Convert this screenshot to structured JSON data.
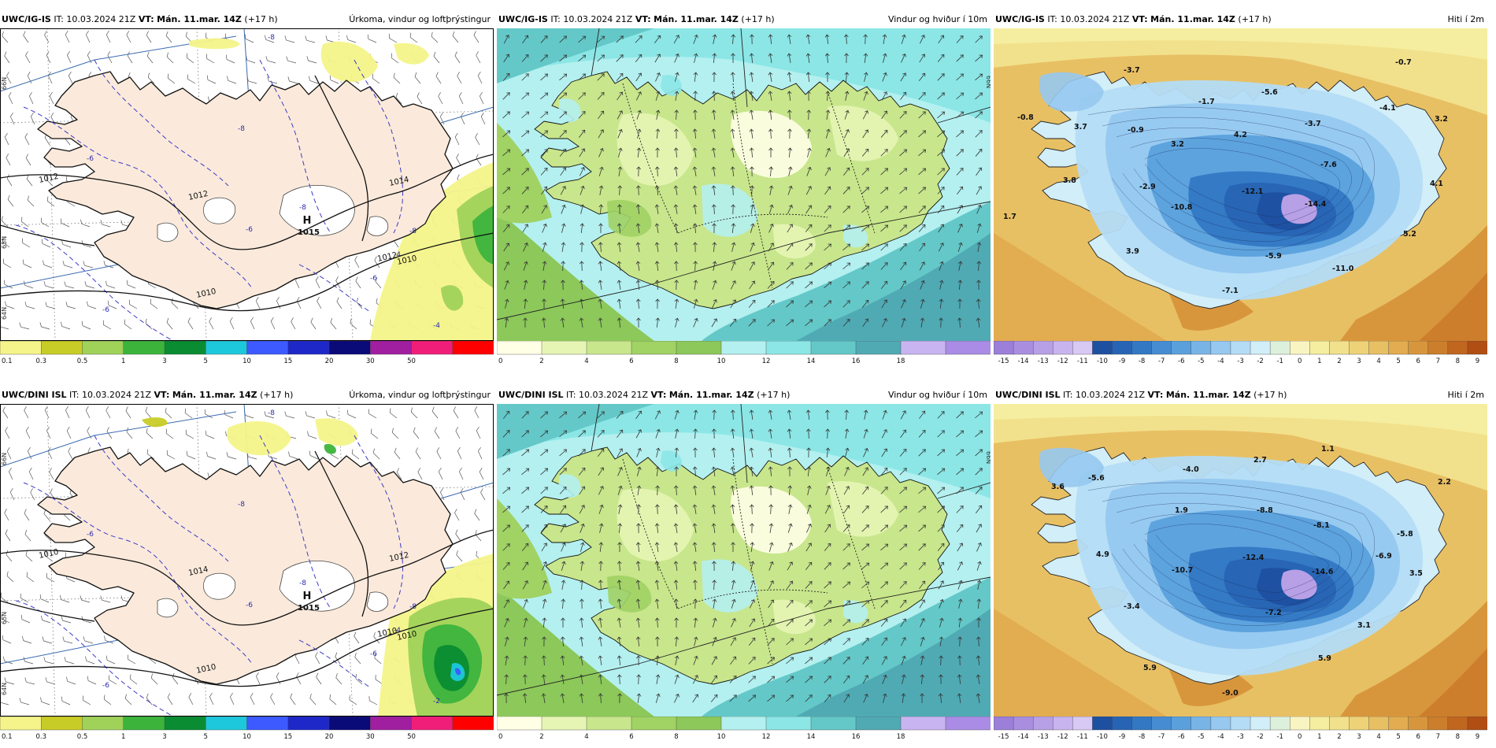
{
  "panels": [
    {
      "model": "UWC/IG-IS",
      "it_label": "IT:",
      "it": "10.03.2024 21Z",
      "vt_label": "VT:",
      "vt": "Mán. 11.mar. 14Z",
      "lead": "(+17 h)",
      "title": "Úrkoma, vindur og loftþrýstingur",
      "kind": "precip"
    },
    {
      "model": "UWC/IG-IS",
      "it_label": "IT:",
      "it": "10.03.2024 21Z",
      "vt_label": "VT:",
      "vt": "Mán. 11.mar. 14Z",
      "lead": "(+17 h)",
      "title": "Vindur og hviður í 10m",
      "kind": "wind"
    },
    {
      "model": "UWC/IG-IS",
      "it_label": "IT:",
      "it": "10.03.2024 21Z",
      "vt_label": "VT:",
      "vt": "Mán. 11.mar. 14Z",
      "lead": "(+17 h)",
      "title": "Hiti í 2m",
      "kind": "temp"
    },
    {
      "model": "UWC/DINI ISL",
      "it_label": "IT:",
      "it": "10.03.2024 21Z",
      "vt_label": "VT:",
      "vt": "Mán. 11.mar. 14Z",
      "lead": "(+17 h)",
      "title": "Úrkoma, vindur og loftþrýstingur",
      "kind": "precip"
    },
    {
      "model": "UWC/DINI ISL",
      "it_label": "IT:",
      "it": "10.03.2024 21Z",
      "vt_label": "VT:",
      "vt": "Mán. 11.mar. 14Z",
      "lead": "(+17 h)",
      "title": "Vindur og hviður í 10m",
      "kind": "wind"
    },
    {
      "model": "UWC/DINI ISL",
      "it_label": "IT:",
      "it": "10.03.2024 21Z",
      "vt_label": "VT:",
      "vt": "Mán. 11.mar. 14Z",
      "lead": "(+17 h)",
      "title": "Hiti í 2m",
      "kind": "temp"
    }
  ],
  "precip_scale": {
    "labels": [
      "0.1",
      "0.3",
      "0.5",
      "1",
      "3",
      "5",
      "10",
      "15",
      "20",
      "30",
      "50",
      ""
    ],
    "colors": [
      "#f4f48a",
      "#c8cc26",
      "#a0d25a",
      "#3cb43c",
      "#0a8c32",
      "#1ec8dc",
      "#3c5aff",
      "#1e28c8",
      "#0a0a78",
      "#a01ea0",
      "#f01e78",
      "#ff0000"
    ]
  },
  "wind_scale": {
    "labels": [
      "0",
      "2",
      "4",
      "6",
      "8",
      "10",
      "12",
      "14",
      "16",
      "18"
    ],
    "colors": [
      "#ffffe6",
      "#e6f5b4",
      "#c8e68c",
      "#a0d264",
      "#8cc85a",
      "#b4f0f0",
      "#8ce6e6",
      "#64c8c8",
      "#50aab4",
      "#c8b4f0",
      "#aa8ce6"
    ]
  },
  "temp_scale": {
    "labels": [
      "-15",
      "-14",
      "-13",
      "-12",
      "-11",
      "-10",
      "-9",
      "-8",
      "-7",
      "-6",
      "-5",
      "-4",
      "-3",
      "-2",
      "-1",
      "0",
      "1",
      "2",
      "3",
      "4",
      "5",
      "6",
      "7",
      "8",
      "9"
    ],
    "colors": [
      "#9b7fd9",
      "#a98ee0",
      "#b8a0e6",
      "#c8b4ee",
      "#d8c8f4",
      "#1e50a0",
      "#2864b4",
      "#3278c3",
      "#468cd2",
      "#5aa0dc",
      "#78b4e6",
      "#96c8f0",
      "#b4dcf5",
      "#d2eef8",
      "#dcf0dc",
      "#f8f5c3",
      "#f5eea0",
      "#f2e18c",
      "#eed278",
      "#e8c064",
      "#e2ac50",
      "#d8963c",
      "#cc7e2c",
      "#c0661e",
      "#b04e14"
    ]
  },
  "pressure_labels": {
    "r0": [
      "1012",
      "1012",
      "1014",
      "1010",
      "1010",
      "1012"
    ],
    "r1": [
      "1010",
      "1014",
      "1012",
      "1010",
      "1010",
      "1010"
    ],
    "high_letter": "H",
    "high_r0": "1015",
    "high_r1": "1015"
  },
  "precip_dashed_labels": {
    "r0": [
      "-8",
      "-6",
      "-8",
      "-8",
      "-6",
      "-4",
      "-6",
      "-8",
      "-6",
      "-4"
    ],
    "r1": [
      "-8",
      "-6",
      "-8",
      "-8",
      "-6",
      "-4",
      "-6",
      "-8",
      "-6",
      "-2"
    ]
  },
  "lat_labels": [
    "66N",
    "65N",
    "64N"
  ],
  "temp_labels": {
    "r0": [
      {
        "t": "-3.7"
      },
      {
        "t": "-1.7"
      },
      {
        "t": "-5.6"
      },
      {
        "t": "-0.7"
      },
      {
        "t": "-4.1"
      },
      {
        "t": "-0.8"
      },
      {
        "t": "3.7"
      },
      {
        "t": "-0.9"
      },
      {
        "t": "3.2"
      },
      {
        "t": "4.2"
      },
      {
        "t": "-3.7"
      },
      {
        "t": "3.2"
      },
      {
        "t": "-7.6"
      },
      {
        "t": "3.8"
      },
      {
        "t": "-2.9"
      },
      {
        "t": "-12.1"
      },
      {
        "t": "4.1"
      },
      {
        "t": "-10.8"
      },
      {
        "t": "-14.4"
      },
      {
        "t": "1.7"
      },
      {
        "t": "5.2"
      },
      {
        "t": "3.9"
      },
      {
        "t": "-5.9"
      },
      {
        "t": "-11.0"
      },
      {
        "t": "-7.1"
      }
    ],
    "r1": [
      {
        "t": "2.7"
      },
      {
        "t": "1.1"
      },
      {
        "t": "-4.0"
      },
      {
        "t": "3.6"
      },
      {
        "t": "-5.6"
      },
      {
        "t": "2.2"
      },
      {
        "t": "1.9"
      },
      {
        "t": "-8.8"
      },
      {
        "t": "-8.1"
      },
      {
        "t": "-5.8"
      },
      {
        "t": "4.9"
      },
      {
        "t": "-12.4"
      },
      {
        "t": "-10.7"
      },
      {
        "t": "-14.6"
      },
      {
        "t": "-6.9"
      },
      {
        "t": "3.5"
      },
      {
        "t": "-3.4"
      },
      {
        "t": "-7.2"
      },
      {
        "t": "3.1"
      },
      {
        "t": "5.9"
      },
      {
        "t": "5.9"
      },
      {
        "t": "-9.0"
      }
    ]
  }
}
